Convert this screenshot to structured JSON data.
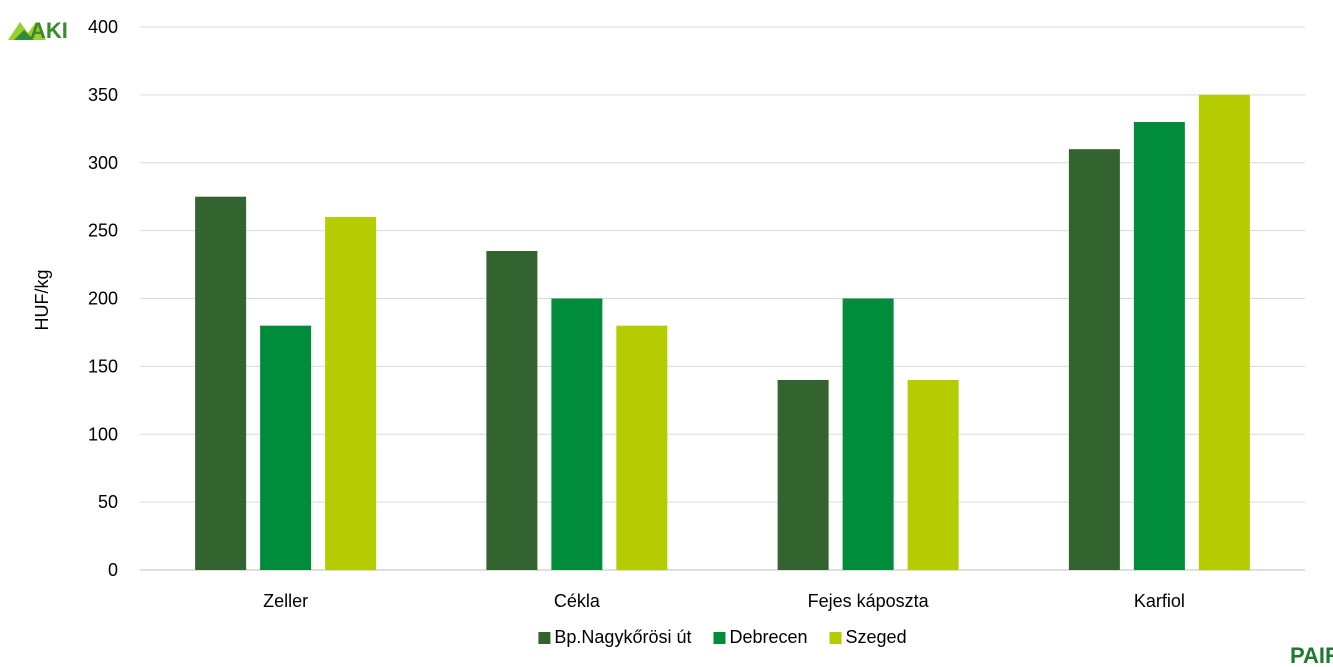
{
  "chart_data": {
    "type": "bar",
    "title": "",
    "xlabel": "",
    "ylabel": "HUF/kg",
    "ylim": [
      0,
      400
    ],
    "yticks": [
      0,
      50,
      100,
      150,
      200,
      250,
      300,
      350,
      400
    ],
    "grid": true,
    "legend_position": "bottom",
    "categories": [
      "Zeller",
      "Cékla",
      "Fejes káposzta",
      "Karfiol"
    ],
    "series": [
      {
        "name": "Bp.Nagykőrösi út",
        "color": "#33632e",
        "values": [
          275,
          235,
          140,
          310
        ]
      },
      {
        "name": "Debrecen",
        "color": "#008c3a",
        "values": [
          180,
          200,
          200,
          330
        ]
      },
      {
        "name": "Szeged",
        "color": "#b5cc00",
        "values": [
          260,
          180,
          140,
          350
        ]
      }
    ]
  },
  "logos": {
    "top_left": "AKI",
    "bottom_right": "PAIR"
  },
  "colors": {
    "grid": "#d9d9d9",
    "axis": "#bfbfbf"
  }
}
